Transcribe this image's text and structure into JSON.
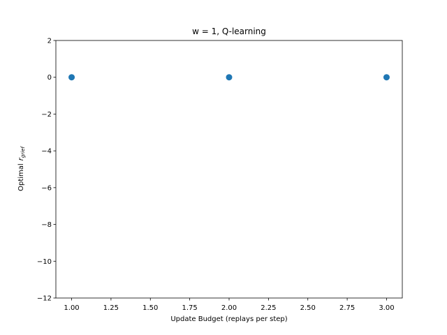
{
  "chart_data": {
    "type": "scatter",
    "title": "w = 1, Q-learning",
    "xlabel": "Update Budget (replays per step)",
    "ylabel": "Optimal",
    "ylabel_math": {
      "base": "r",
      "subscript": "grief"
    },
    "xlim": [
      0.9,
      3.1
    ],
    "ylim": [
      -12,
      2
    ],
    "xticks": [
      1.0,
      1.25,
      1.5,
      1.75,
      2.0,
      2.25,
      2.5,
      2.75,
      3.0
    ],
    "xtick_labels": [
      "1.00",
      "1.25",
      "1.50",
      "1.75",
      "2.00",
      "2.25",
      "2.50",
      "2.75",
      "3.00"
    ],
    "yticks": [
      2,
      0,
      -2,
      -4,
      -6,
      -8,
      -10,
      -12
    ],
    "ytick_labels": [
      "2",
      "0",
      "−2",
      "−4",
      "−6",
      "−8",
      "−10",
      "−12"
    ],
    "grid": false,
    "series": [
      {
        "x": [
          1.0,
          2.0,
          3.0
        ],
        "y": [
          0,
          0,
          0
        ],
        "color": "#1f77b4"
      }
    ]
  }
}
